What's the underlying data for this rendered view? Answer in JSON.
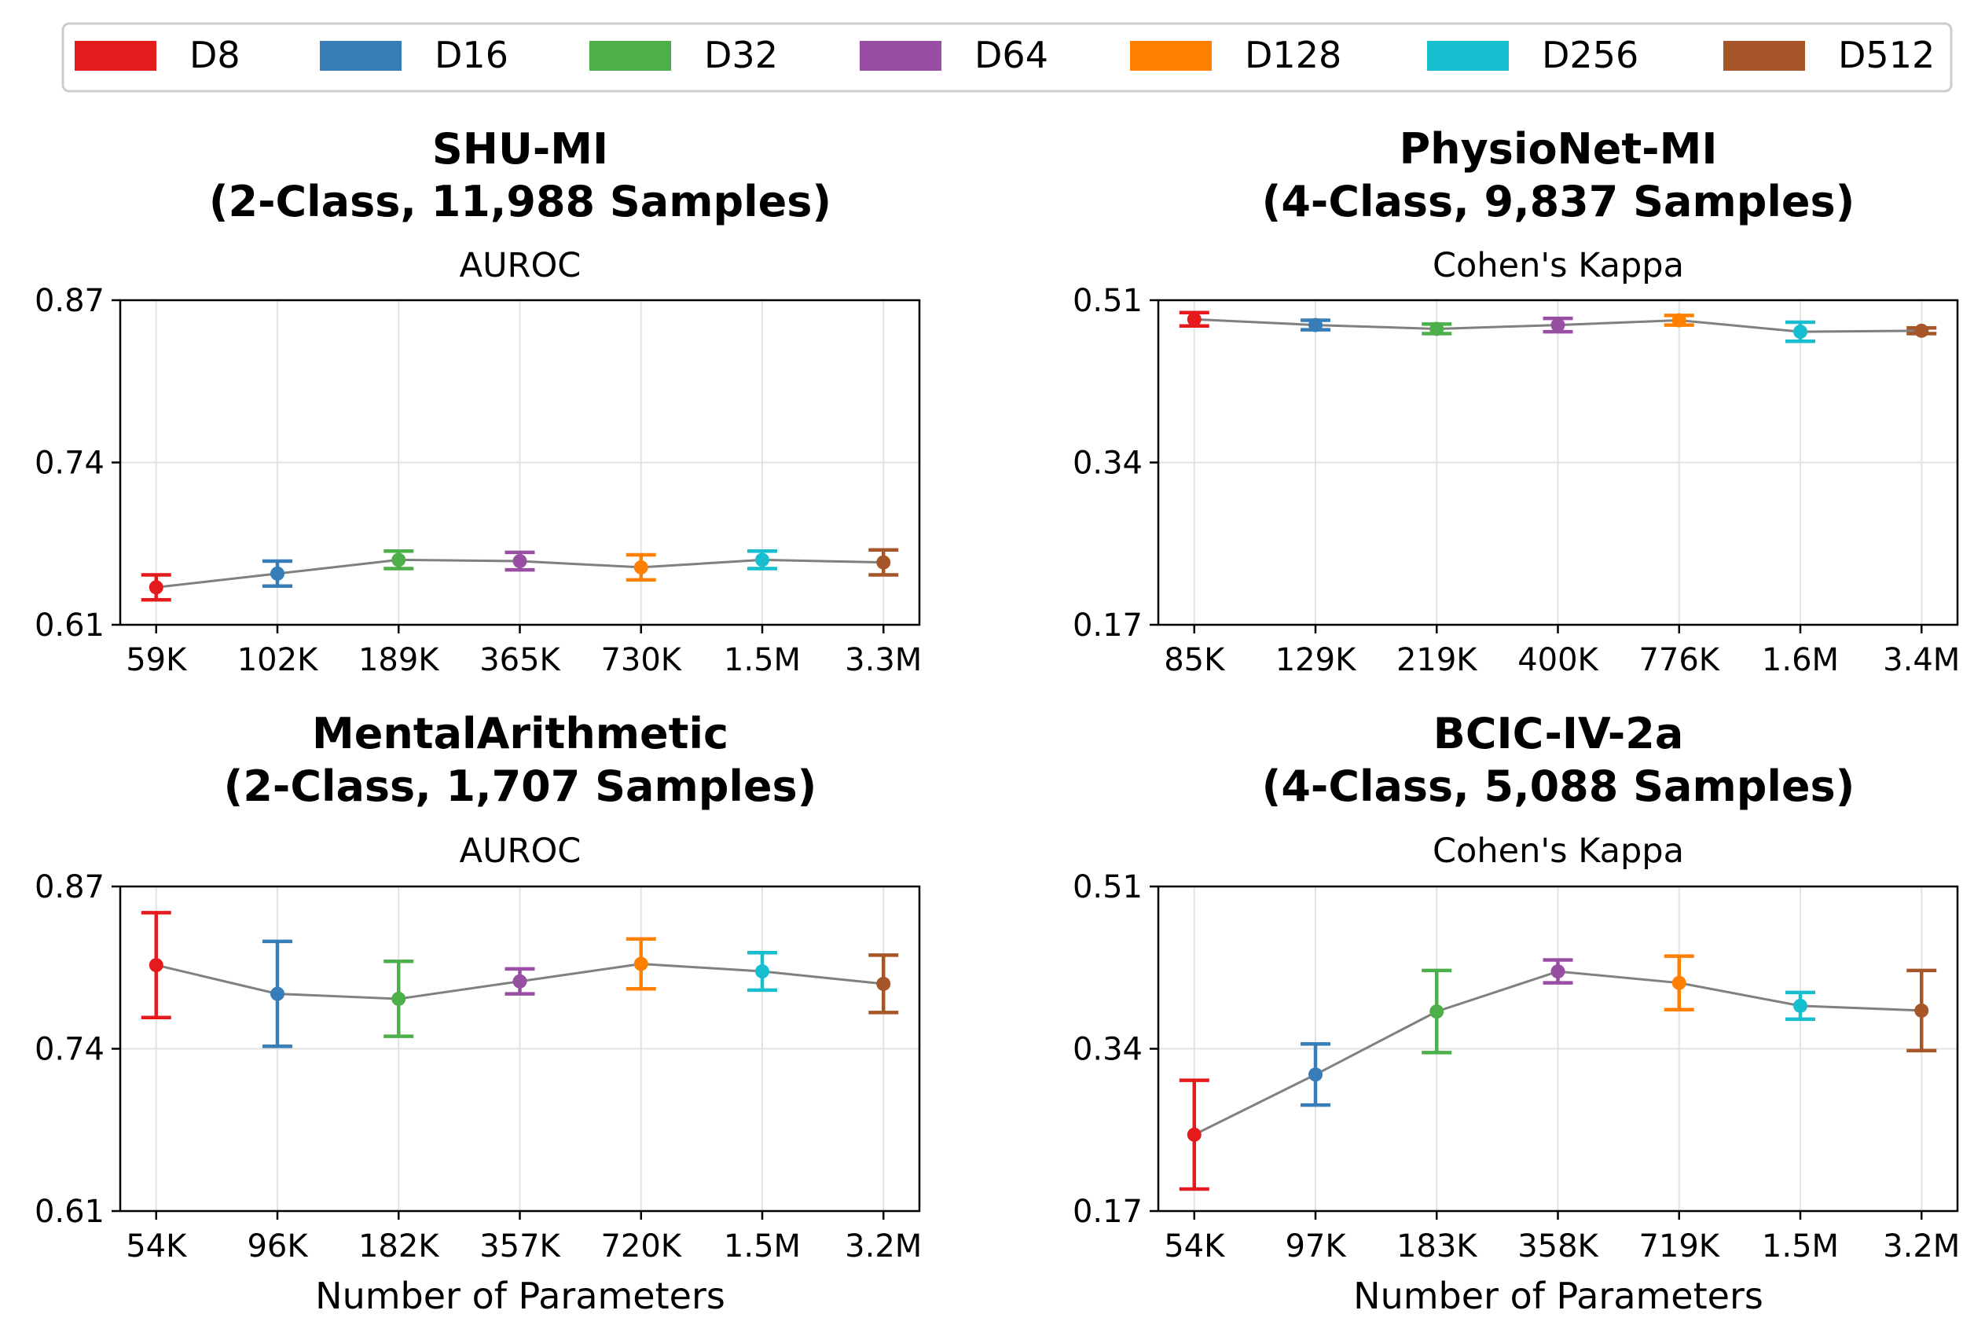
{
  "legend": {
    "items": [
      {
        "label": "D8",
        "color": "#e41a1c"
      },
      {
        "label": "D16",
        "color": "#377eb8"
      },
      {
        "label": "D32",
        "color": "#4daf4a"
      },
      {
        "label": "D64",
        "color": "#984ea3"
      },
      {
        "label": "D128",
        "color": "#ff7f00"
      },
      {
        "label": "D256",
        "color": "#17becf"
      },
      {
        "label": "D512",
        "color": "#a65628"
      }
    ]
  },
  "chart_data": [
    {
      "type": "line",
      "title_line1": "SHU-MI",
      "title_line2": "(2-Class, 11,988 Samples)",
      "subtitle": "AUROC",
      "xlabel": "",
      "categories": [
        "59K",
        "102K",
        "189K",
        "365K",
        "730K",
        "1.5M",
        "3.3M"
      ],
      "values": [
        0.64,
        0.651,
        0.662,
        0.661,
        0.656,
        0.662,
        0.66
      ],
      "errors": [
        0.01,
        0.01,
        0.007,
        0.007,
        0.01,
        0.007,
        0.01
      ],
      "ylim": [
        0.61,
        0.87
      ],
      "yticks": [
        "0.61",
        "0.74",
        "0.87"
      ]
    },
    {
      "type": "line",
      "title_line1": "PhysioNet-MI",
      "title_line2": "(4-Class, 9,837 Samples)",
      "subtitle": "Cohen's Kappa",
      "xlabel": "",
      "categories": [
        "85K",
        "129K",
        "219K",
        "400K",
        "776K",
        "1.6M",
        "3.4M"
      ],
      "values": [
        0.49,
        0.484,
        0.48,
        0.484,
        0.489,
        0.477,
        0.478
      ],
      "errors": [
        0.007,
        0.005,
        0.005,
        0.007,
        0.005,
        0.01,
        0.003
      ],
      "ylim": [
        0.17,
        0.51
      ],
      "yticks": [
        "0.17",
        "0.34",
        "0.51"
      ]
    },
    {
      "type": "line",
      "title_line1": "MentalArithmetic",
      "title_line2": "(2-Class, 1,707 Samples)",
      "subtitle": "AUROC",
      "xlabel": "Number of Parameters",
      "categories": [
        "54K",
        "96K",
        "182K",
        "357K",
        "720K",
        "1.5M",
        "3.2M"
      ],
      "values": [
        0.807,
        0.784,
        0.78,
        0.794,
        0.808,
        0.802,
        0.792
      ],
      "errors": [
        0.042,
        0.042,
        0.03,
        0.01,
        0.02,
        0.015,
        0.023
      ],
      "ylim": [
        0.61,
        0.87
      ],
      "yticks": [
        "0.61",
        "0.74",
        "0.87"
      ]
    },
    {
      "type": "line",
      "title_line1": "BCIC-IV-2a",
      "title_line2": "(4-Class, 5,088 Samples)",
      "subtitle": "Cohen's Kappa",
      "xlabel": "Number of Parameters",
      "categories": [
        "54K",
        "97K",
        "183K",
        "358K",
        "719K",
        "1.5M",
        "3.2M"
      ],
      "values": [
        0.25,
        0.313,
        0.379,
        0.421,
        0.409,
        0.385,
        0.38
      ],
      "errors": [
        0.057,
        0.032,
        0.043,
        0.012,
        0.028,
        0.014,
        0.042
      ],
      "ylim": [
        0.17,
        0.51
      ],
      "yticks": [
        "0.17",
        "0.34",
        "0.51"
      ]
    }
  ]
}
